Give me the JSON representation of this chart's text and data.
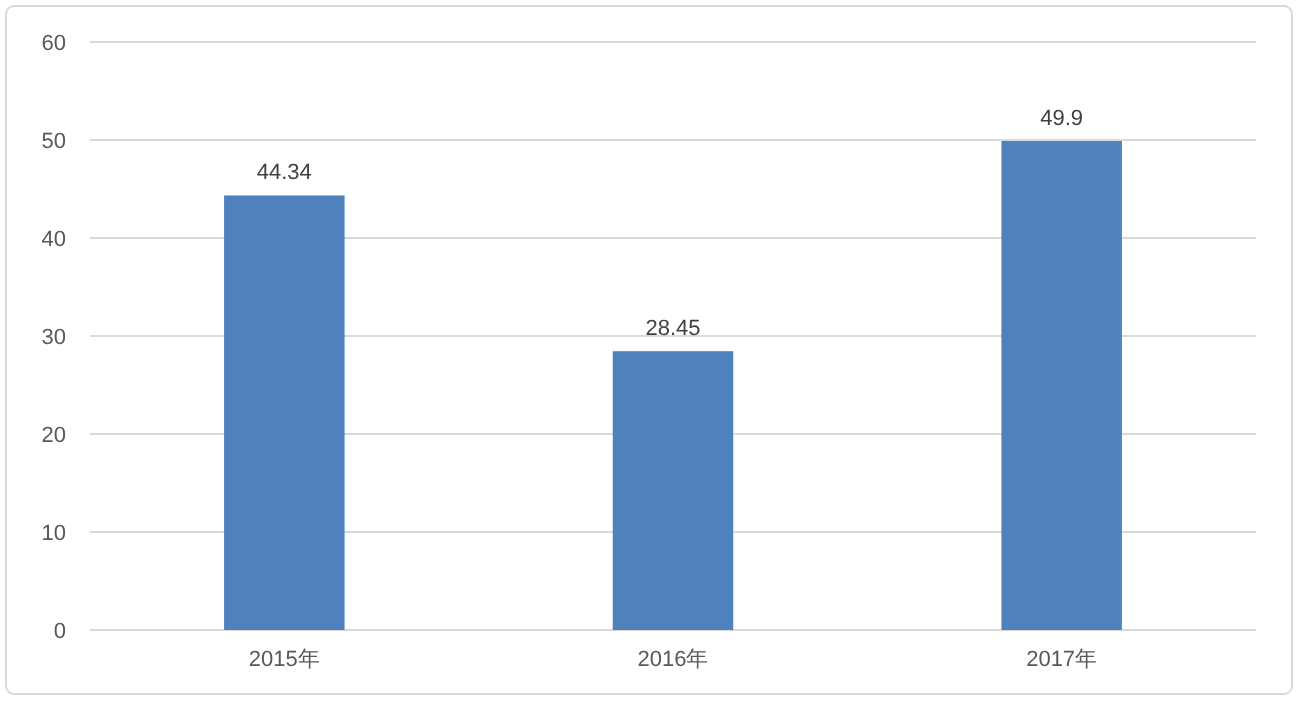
{
  "chart_data": {
    "type": "bar",
    "categories": [
      "2015年",
      "2016年",
      "2017年"
    ],
    "values": [
      44.34,
      28.45,
      49.9
    ],
    "color": "#4f81bd",
    "ylim": [
      0,
      60
    ],
    "yticks": [
      0,
      10,
      20,
      30,
      40,
      50,
      60
    ],
    "grid": "y",
    "data_labels": true
  }
}
